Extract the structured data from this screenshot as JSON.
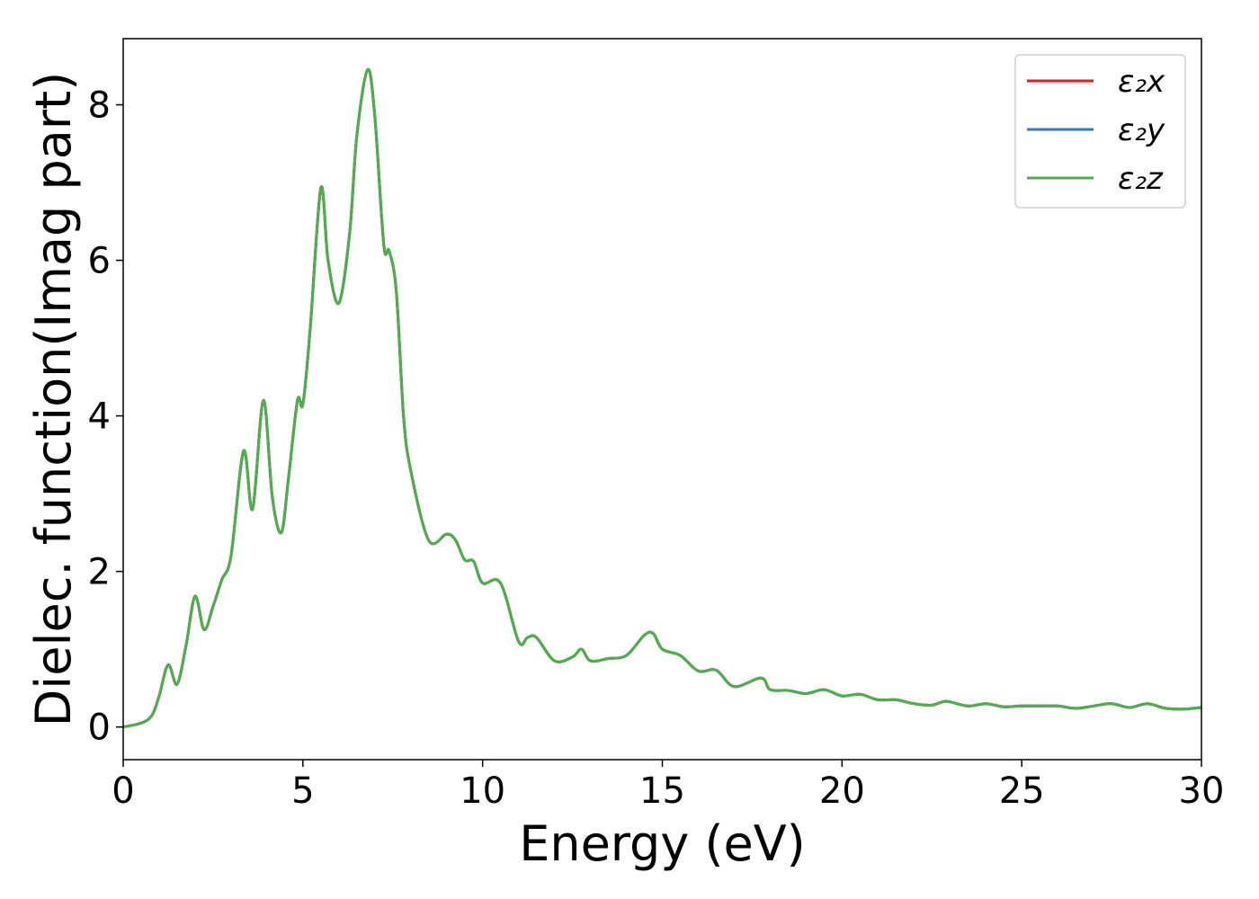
{
  "chart_data": {
    "type": "line",
    "title": "",
    "xlabel": "Energy (eV)",
    "ylabel": "Dielec. function(Imag part)",
    "xlim": [
      0,
      30
    ],
    "ylim": [
      -0.42,
      8.85
    ],
    "xticks": [
      0,
      5,
      10,
      15,
      20,
      25,
      30
    ],
    "xtick_labels": [
      "0",
      "5",
      "10",
      "15",
      "20",
      "25",
      "30"
    ],
    "yticks": [
      0,
      2,
      4,
      6,
      8
    ],
    "ytick_labels": [
      "0",
      "2",
      "4",
      "6",
      "8"
    ],
    "grid": false,
    "legend": "top-right",
    "x": [
      0,
      0.5,
      0.8,
      1.0,
      1.25,
      1.5,
      1.75,
      2.0,
      2.25,
      2.5,
      2.75,
      3.0,
      3.35,
      3.6,
      3.9,
      4.15,
      4.4,
      4.6,
      4.85,
      5.0,
      5.2,
      5.5,
      5.7,
      6.0,
      6.3,
      6.5,
      6.8,
      7.0,
      7.25,
      7.4,
      7.6,
      7.8,
      8.0,
      8.5,
      9.0,
      9.25,
      9.5,
      9.75,
      10.0,
      10.5,
      11.0,
      11.25,
      11.5,
      12.0,
      12.5,
      12.75,
      13.0,
      13.5,
      14.0,
      14.5,
      14.75,
      15.0,
      15.5,
      16.0,
      16.5,
      17.0,
      17.75,
      18.0,
      18.5,
      19.0,
      19.5,
      20.0,
      20.5,
      21.0,
      21.5,
      22.0,
      22.5,
      22.9,
      23.5,
      24.0,
      24.5,
      25.0,
      25.5,
      26.0,
      26.5,
      27.0,
      27.5,
      28.0,
      28.5,
      29.0,
      29.5,
      30.0
    ],
    "series": [
      {
        "name": "ε₂x",
        "color": "#e41a1c",
        "values": [
          0.0,
          0.05,
          0.15,
          0.4,
          0.8,
          0.55,
          1.05,
          1.68,
          1.25,
          1.55,
          1.9,
          2.2,
          3.55,
          2.8,
          4.2,
          2.95,
          2.5,
          3.2,
          4.2,
          4.15,
          5.1,
          6.93,
          6.0,
          5.45,
          6.35,
          7.6,
          8.45,
          7.85,
          6.2,
          6.12,
          5.6,
          4.0,
          3.3,
          2.4,
          2.48,
          2.4,
          2.15,
          2.13,
          1.85,
          1.85,
          1.1,
          1.15,
          1.15,
          0.85,
          0.9,
          1.0,
          0.85,
          0.88,
          0.92,
          1.18,
          1.2,
          1.0,
          0.92,
          0.72,
          0.73,
          0.52,
          0.63,
          0.48,
          0.47,
          0.43,
          0.48,
          0.4,
          0.42,
          0.35,
          0.35,
          0.3,
          0.28,
          0.33,
          0.27,
          0.3,
          0.26,
          0.27,
          0.27,
          0.27,
          0.24,
          0.27,
          0.3,
          0.25,
          0.3,
          0.24,
          0.23,
          0.25
        ]
      },
      {
        "name": "ε₂y",
        "color": "#377eb8",
        "values": [
          0.0,
          0.05,
          0.15,
          0.4,
          0.8,
          0.55,
          1.05,
          1.68,
          1.25,
          1.55,
          1.9,
          2.2,
          3.55,
          2.8,
          4.2,
          2.95,
          2.5,
          3.2,
          4.2,
          4.15,
          5.1,
          6.93,
          6.0,
          5.45,
          6.35,
          7.6,
          8.45,
          7.85,
          6.2,
          6.12,
          5.6,
          4.0,
          3.3,
          2.4,
          2.48,
          2.4,
          2.15,
          2.13,
          1.85,
          1.85,
          1.1,
          1.15,
          1.15,
          0.85,
          0.9,
          1.0,
          0.85,
          0.88,
          0.92,
          1.18,
          1.2,
          1.0,
          0.92,
          0.72,
          0.73,
          0.52,
          0.63,
          0.48,
          0.47,
          0.43,
          0.48,
          0.4,
          0.42,
          0.35,
          0.35,
          0.3,
          0.28,
          0.33,
          0.27,
          0.3,
          0.26,
          0.27,
          0.27,
          0.27,
          0.24,
          0.27,
          0.3,
          0.25,
          0.3,
          0.24,
          0.23,
          0.25
        ]
      },
      {
        "name": "ε₂z",
        "color": "#4daf4a",
        "values": [
          0.0,
          0.05,
          0.15,
          0.4,
          0.8,
          0.55,
          1.05,
          1.68,
          1.25,
          1.55,
          1.9,
          2.2,
          3.55,
          2.8,
          4.2,
          2.95,
          2.5,
          3.2,
          4.2,
          4.15,
          5.1,
          6.93,
          6.0,
          5.45,
          6.35,
          7.6,
          8.45,
          7.85,
          6.2,
          6.12,
          5.6,
          4.0,
          3.3,
          2.4,
          2.48,
          2.4,
          2.15,
          2.13,
          1.85,
          1.85,
          1.1,
          1.15,
          1.15,
          0.85,
          0.9,
          1.0,
          0.85,
          0.88,
          0.92,
          1.18,
          1.2,
          1.0,
          0.92,
          0.72,
          0.73,
          0.52,
          0.63,
          0.48,
          0.47,
          0.43,
          0.48,
          0.4,
          0.42,
          0.35,
          0.35,
          0.3,
          0.28,
          0.33,
          0.27,
          0.3,
          0.26,
          0.27,
          0.27,
          0.27,
          0.24,
          0.27,
          0.3,
          0.25,
          0.3,
          0.24,
          0.23,
          0.25
        ]
      }
    ]
  }
}
